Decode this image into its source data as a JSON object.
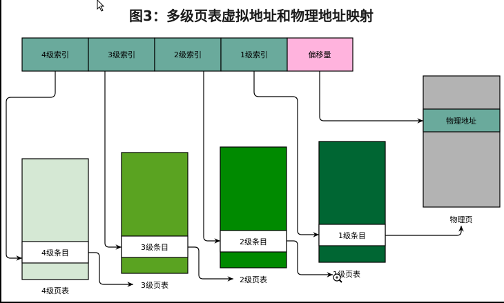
{
  "title": "图3：多级页表虚拟地址和物理地址映射",
  "address_fields": [
    {
      "label": "4级索引",
      "color": "#6aaa9c"
    },
    {
      "label": "3级索引",
      "color": "#6aaa9c"
    },
    {
      "label": "2级索引",
      "color": "#6aaa9c"
    },
    {
      "label": "1级索引",
      "color": "#6aaa9c"
    },
    {
      "label": "偏移量",
      "color": "#ffb3dd"
    }
  ],
  "page_tables": [
    {
      "entry_label": "4级条目",
      "table_label": "4级页表",
      "color": "#d5e8d4"
    },
    {
      "entry_label": "3级条目",
      "table_label": "3级页表",
      "color": "#5aa321"
    },
    {
      "entry_label": "2级条目",
      "table_label": "2级页表",
      "color": "#008a00"
    },
    {
      "entry_label": "1级条目",
      "table_label": "1级页表",
      "color": "#006633"
    }
  ],
  "physical_page": {
    "label": "物理页",
    "address_label": "物理地址",
    "color": "#b3b3b3",
    "address_color": "#6aaa9c"
  }
}
